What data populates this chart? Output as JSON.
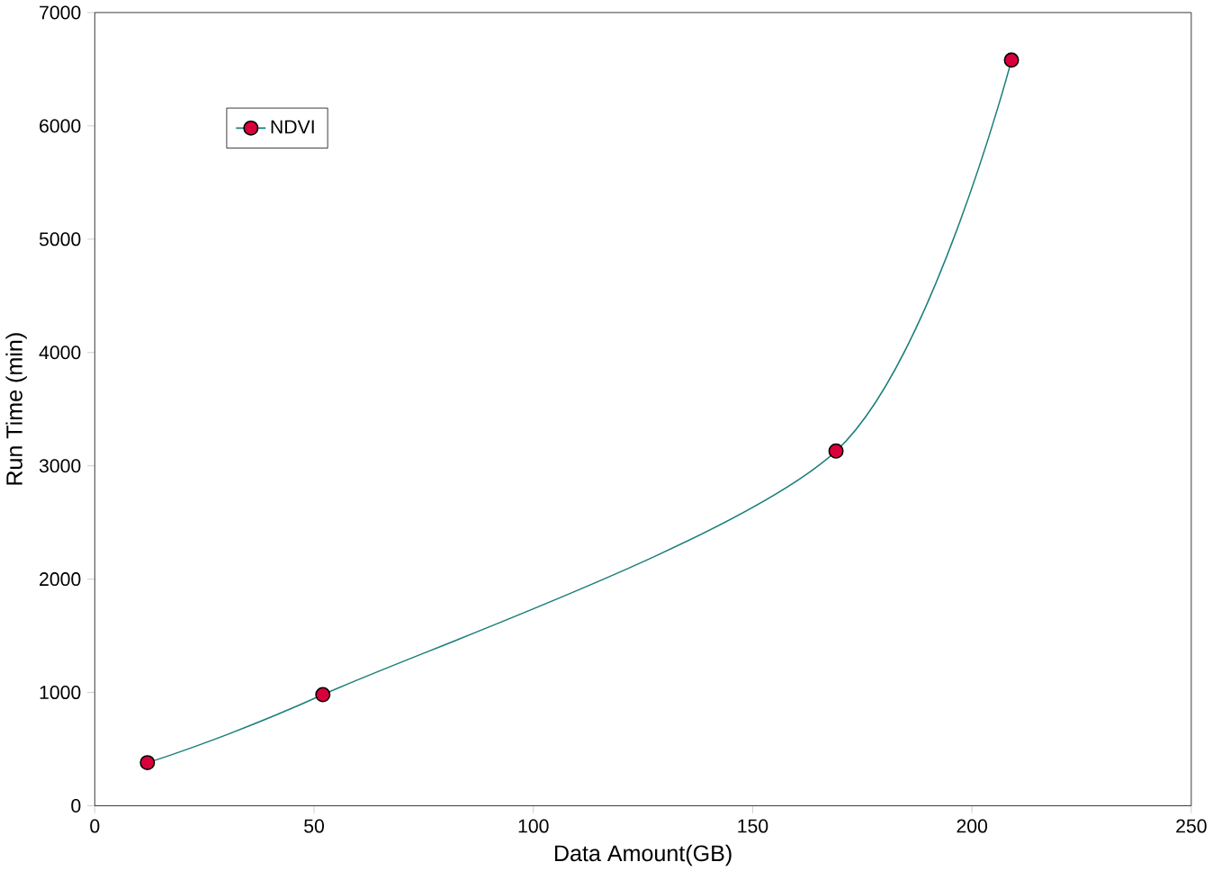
{
  "chart_data": {
    "type": "line",
    "xlabel": "Data Amount(GB)",
    "ylabel": "Run Time (min)",
    "xlim": [
      0,
      250
    ],
    "xticks": [
      0,
      50,
      100,
      150,
      200,
      250
    ],
    "ylim": [
      0,
      7000
    ],
    "yticks": [
      0,
      1000,
      2000,
      3000,
      4000,
      5000,
      6000,
      7000
    ],
    "grid": false,
    "legend": "top left",
    "marker": "circle",
    "line_style": "solid",
    "series": [
      {
        "name": "NDVI",
        "color": "#1a7f7a",
        "colors": [
          "#d9003b",
          "#d9003b",
          "#d9003b",
          "#d9003b"
        ],
        "x": [
          12,
          52,
          169,
          209
        ],
        "values": [
          380,
          980,
          3130,
          6580
        ]
      }
    ]
  }
}
